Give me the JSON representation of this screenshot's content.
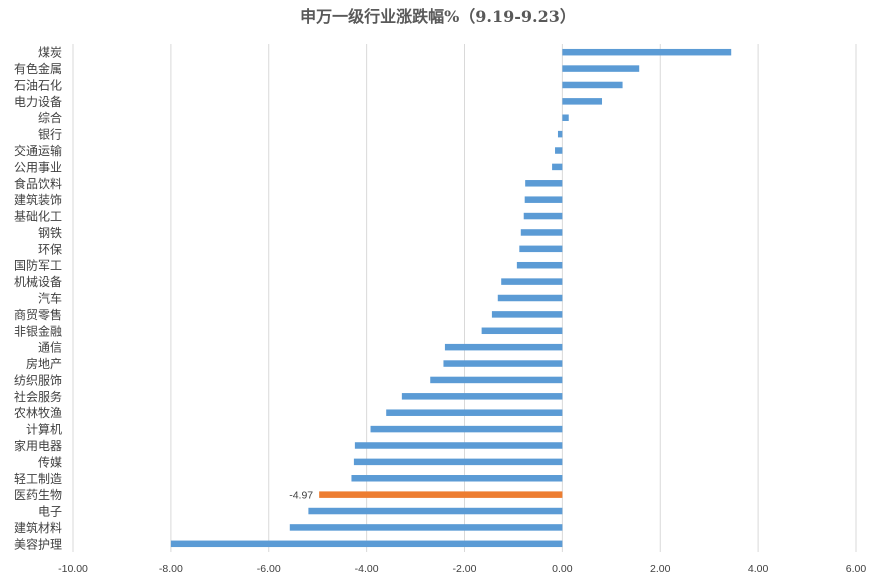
{
  "chart_data": {
    "type": "bar",
    "orientation": "horizontal",
    "title": "申万一级行业涨跌幅%（9.19-9.23）",
    "xlabel": "",
    "ylabel": "",
    "xlim": [
      -10,
      6
    ],
    "x_ticks": [
      "-10.00",
      "-8.00",
      "-6.00",
      "-4.00",
      "-2.00",
      "0.00",
      "2.00",
      "4.00",
      "6.00"
    ],
    "grid": "vertical",
    "legend": "none",
    "colors": {
      "bar": "#5b9bd5",
      "highlight": "#ed7d31"
    },
    "categories": [
      "煤炭",
      "有色金属",
      "石油石化",
      "电力设备",
      "综合",
      "银行",
      "交通运输",
      "公用事业",
      "食品饮料",
      "建筑装饰",
      "基础化工",
      "钢铁",
      "环保",
      "国防军工",
      "机械设备",
      "汽车",
      "商贸零售",
      "非银金融",
      "通信",
      "房地产",
      "纺织服饰",
      "社会服务",
      "农林牧渔",
      "计算机",
      "家用电器",
      "传媒",
      "轻工制造",
      "医药生物",
      "电子",
      "建筑材料",
      "美容护理"
    ],
    "values": [
      3.45,
      1.57,
      1.23,
      0.81,
      0.13,
      -0.09,
      -0.15,
      -0.21,
      -0.76,
      -0.77,
      -0.79,
      -0.85,
      -0.88,
      -0.93,
      -1.25,
      -1.32,
      -1.44,
      -1.65,
      -2.4,
      -2.43,
      -2.7,
      -3.28,
      -3.6,
      -3.92,
      -4.24,
      -4.26,
      -4.31,
      -4.97,
      -5.19,
      -5.57,
      -8.0
    ],
    "highlight_index": 27,
    "data_labels": [
      {
        "index": 27,
        "text": "-4.97"
      }
    ]
  }
}
